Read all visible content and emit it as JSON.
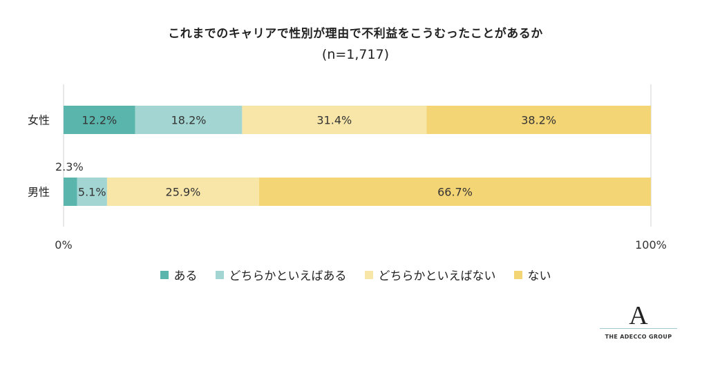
{
  "chart_data": {
    "type": "bar",
    "orientation": "horizontal",
    "stacked": true,
    "title": "これまでのキャリアで性別が理由で不利益をこうむったことがあるか",
    "subtitle": "(n=1,717)",
    "categories": [
      "女性",
      "男性"
    ],
    "series": [
      {
        "name": "ある",
        "color": "#5ab5ad",
        "values": [
          12.2,
          2.3
        ],
        "labels": [
          "12.2%",
          "2.3%"
        ]
      },
      {
        "name": "どちらかといえばある",
        "color": "#a3d6d2",
        "values": [
          18.2,
          5.1
        ],
        "labels": [
          "18.2%",
          "5.1%"
        ]
      },
      {
        "name": "どちらかといえばない",
        "color": "#f8e6a8",
        "values": [
          31.4,
          25.9
        ],
        "labels": [
          "31.4%",
          "25.9%"
        ]
      },
      {
        "name": "ない",
        "color": "#f4d575",
        "values": [
          38.2,
          66.7
        ],
        "labels": [
          "38.2%",
          "66.7%"
        ]
      }
    ],
    "xlim": [
      0,
      100
    ],
    "x_ticks": [
      "0%",
      "100%"
    ],
    "grid": false,
    "legend_position": "bottom"
  },
  "brand": {
    "logo_letter": "A",
    "name": "THE ADECCO GROUP"
  }
}
